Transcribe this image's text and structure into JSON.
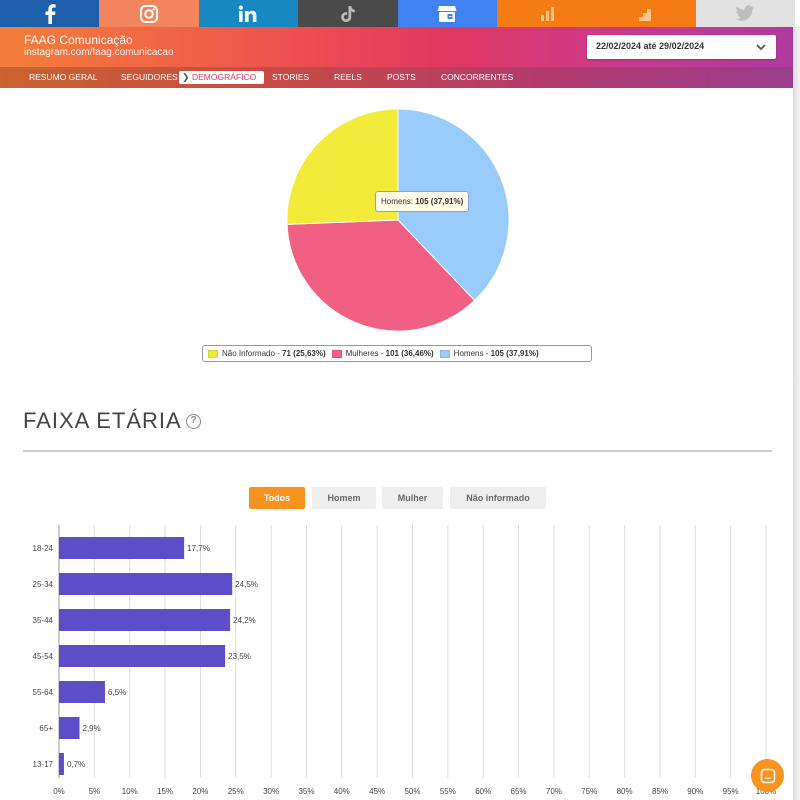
{
  "social_tabs": [
    {
      "icon": "facebook-icon",
      "bg": "#1d5faa"
    },
    {
      "icon": "instagram-icon",
      "bg": "#f2845e"
    },
    {
      "icon": "linkedin-icon",
      "bg": "#1788c2"
    },
    {
      "icon": "tiktok-icon",
      "bg": "#4a4a4a"
    },
    {
      "icon": "google-business-icon",
      "bg": "#3f82f0"
    },
    {
      "icon": "analytics-icon",
      "bg": "#f57c15"
    },
    {
      "icon": "steps-icon",
      "bg": "#f57c15"
    },
    {
      "icon": "twitter-icon",
      "bg": "#e2e2e2"
    }
  ],
  "account": {
    "name": "FAAG Comunicação",
    "url": "instagram.com/faag.comunicacao"
  },
  "date_range": "22/02/2024 até 29/02/2024",
  "nav": [
    {
      "label": "RESUMO GERAL"
    },
    {
      "label": "SEGUIDORES"
    },
    {
      "label": "DEMOGRÁFICO",
      "active": true
    },
    {
      "label": "STORIES"
    },
    {
      "label": "REELS"
    },
    {
      "label": "POSTS"
    },
    {
      "label": "CONCORRENTES"
    }
  ],
  "gender_chart": {
    "type": "pie",
    "slices": [
      {
        "label": "Não Informado",
        "value": 71,
        "percent": "25,63%",
        "color": "#f2eb3a"
      },
      {
        "label": "Mulheres",
        "value": 101,
        "percent": "36,46%",
        "color": "#f15f82"
      },
      {
        "label": "Homens",
        "value": 105,
        "percent": "37,91%",
        "color": "#99ccfb"
      }
    ],
    "tooltip": {
      "label": "Homens: ",
      "value": "105 (37,91%)"
    },
    "legend": [
      {
        "label": "Não Informado",
        "value": "71 (25,63%)",
        "color": "#f2eb3a"
      },
      {
        "label": "Mulheres",
        "value": "101 (36,46%)",
        "color": "#f15f82"
      },
      {
        "label": "Homens",
        "value": "105 (37,91%)",
        "color": "#99ccfb"
      }
    ]
  },
  "age_section": {
    "title": "FAIXA ETÁRIA",
    "help": "?",
    "filters": [
      {
        "label": "Todos",
        "active": true
      },
      {
        "label": "Homem"
      },
      {
        "label": "Mulher"
      },
      {
        "label": "Não informado"
      }
    ]
  },
  "chart_data": {
    "type": "bar",
    "orientation": "horizontal",
    "categories": [
      "18-24",
      "25-34",
      "35-44",
      "45-54",
      "55-64",
      "65+",
      "13-17"
    ],
    "values": [
      17.7,
      24.5,
      24.2,
      23.5,
      6.5,
      2.9,
      0.7
    ],
    "data_labels": [
      "17,7%",
      "24,5%",
      "24,2%",
      "23,5%",
      "6,5%",
      "2,9%",
      "0,7%"
    ],
    "x_ticks": [
      "0%",
      "5%",
      "10%",
      "15%",
      "20%",
      "25%",
      "30%",
      "35%",
      "40%",
      "45%",
      "50%",
      "55%",
      "60%",
      "65%",
      "70%",
      "75%",
      "80%",
      "85%",
      "90%",
      "95%",
      "100%"
    ],
    "xlim": [
      0,
      100
    ],
    "grid": true,
    "bar_color": "#5d4ec8"
  }
}
